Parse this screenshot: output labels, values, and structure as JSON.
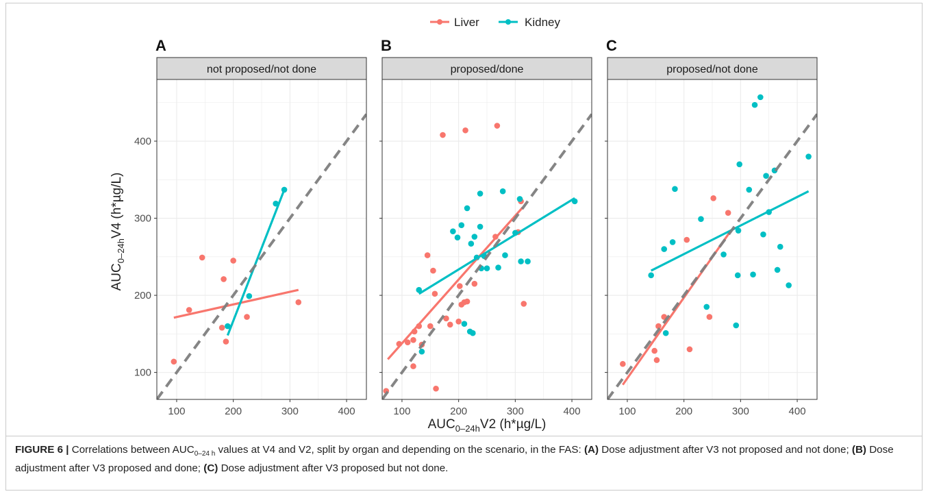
{
  "legend": {
    "items": [
      {
        "label": "Liver",
        "color": "#F8766D"
      },
      {
        "label": "Kidney",
        "color": "#00BFC4"
      }
    ]
  },
  "axes": {
    "xlabel": "AUC",
    "xlabel_sub": "0–24h",
    "xlabel_rest": "V2 (h*µg/L)",
    "ylabel": "AUC",
    "ylabel_sub": "0–24h",
    "ylabel_rest": "V4 (h*µg/L)"
  },
  "caption": {
    "figure_label": "FIGURE 6 |",
    "text1": " Correlations between AUC",
    "sub": "0–24 h",
    "text2": " values at V4 and V2, split by organ and depending on the scenario, in the FAS: ",
    "a_label": "(A)",
    "a_text": " Dose adjustment after V3 not proposed and not done; ",
    "b_label": "(B)",
    "b_text": " Dose adjustment after V3 proposed and done; ",
    "c_label": "(C)",
    "c_text": " Dose adjustment after V3 proposed but not done."
  },
  "chart_data": [
    {
      "type": "scatter",
      "panel_letter": "A",
      "strip_title": "not proposed/not done",
      "xlim": [
        65,
        435
      ],
      "ylim": [
        65,
        480
      ],
      "xticks": [
        100,
        200,
        300,
        400
      ],
      "yticks": [
        100,
        200,
        300,
        400
      ],
      "grid": true,
      "series": [
        {
          "name": "Liver",
          "color": "#F8766D",
          "points": [
            [
              95,
              114
            ],
            [
              122,
              181
            ],
            [
              145,
              249
            ],
            [
              180,
              158
            ],
            [
              183,
              221
            ],
            [
              187,
              140
            ],
            [
              200,
              245
            ],
            [
              224,
              172
            ],
            [
              315,
              191
            ]
          ],
          "fit": [
            [
              95,
              171
            ],
            [
              315,
              207
            ]
          ]
        },
        {
          "name": "Kidney",
          "color": "#00BFC4",
          "points": [
            [
              190,
              160
            ],
            [
              228,
              199
            ],
            [
              275,
              319
            ],
            [
              290,
              337
            ]
          ],
          "fit": [
            [
              190,
              148
            ],
            [
              290,
              337
            ]
          ]
        }
      ],
      "identity_line": true
    },
    {
      "type": "scatter",
      "panel_letter": "B",
      "strip_title": "proposed/done",
      "xlim": [
        65,
        435
      ],
      "ylim": [
        65,
        480
      ],
      "xticks": [
        100,
        200,
        300,
        400
      ],
      "yticks": [
        100,
        200,
        300,
        400
      ],
      "grid": true,
      "series": [
        {
          "name": "Liver",
          "color": "#F8766D",
          "points": [
            [
              72,
              76
            ],
            [
              95,
              137
            ],
            [
              110,
              139
            ],
            [
              120,
              108
            ],
            [
              120,
              142
            ],
            [
              122,
              153
            ],
            [
              130,
              160
            ],
            [
              135,
              136
            ],
            [
              145,
              252
            ],
            [
              150,
              160
            ],
            [
              155,
              232
            ],
            [
              158,
              202
            ],
            [
              160,
              79
            ],
            [
              172,
              408
            ],
            [
              178,
              170
            ],
            [
              185,
              162
            ],
            [
              200,
              166
            ],
            [
              202,
              212
            ],
            [
              205,
              188
            ],
            [
              210,
              191
            ],
            [
              212,
              414
            ],
            [
              215,
              192
            ],
            [
              228,
              215
            ],
            [
              265,
              276
            ],
            [
              268,
              420
            ],
            [
              305,
              282
            ],
            [
              310,
              322
            ],
            [
              315,
              189
            ]
          ],
          "fit": [
            [
              75,
              117
            ],
            [
              313,
              314
            ]
          ]
        },
        {
          "name": "Kidney",
          "color": "#00BFC4",
          "points": [
            [
              130,
              207
            ],
            [
              135,
              127
            ],
            [
              190,
              283
            ],
            [
              198,
              275
            ],
            [
              205,
              291
            ],
            [
              210,
              163
            ],
            [
              215,
              313
            ],
            [
              220,
              153
            ],
            [
              222,
              267
            ],
            [
              225,
              151
            ],
            [
              228,
              276
            ],
            [
              232,
              249
            ],
            [
              238,
              332
            ],
            [
              238,
              289
            ],
            [
              240,
              235
            ],
            [
              245,
              251
            ],
            [
              250,
              235
            ],
            [
              270,
              236
            ],
            [
              278,
              335
            ],
            [
              282,
              252
            ],
            [
              300,
              281
            ],
            [
              308,
              325
            ],
            [
              310,
              244
            ],
            [
              322,
              244
            ],
            [
              405,
              322
            ]
          ],
          "fit": [
            [
              130,
              202
            ],
            [
              405,
              326
            ]
          ]
        }
      ],
      "identity_line": true
    },
    {
      "type": "scatter",
      "panel_letter": "C",
      "strip_title": "proposed/not done",
      "xlim": [
        65,
        435
      ],
      "ylim": [
        65,
        480
      ],
      "xticks": [
        100,
        200,
        300,
        400
      ],
      "yticks": [
        100,
        200,
        300,
        400
      ],
      "grid": true,
      "series": [
        {
          "name": "Liver",
          "color": "#F8766D",
          "points": [
            [
              92,
              111
            ],
            [
              148,
              128
            ],
            [
              152,
              116
            ],
            [
              155,
              160
            ],
            [
              165,
              172
            ],
            [
              205,
              272
            ],
            [
              210,
              130
            ],
            [
              245,
              172
            ],
            [
              252,
              326
            ],
            [
              278,
              307
            ]
          ],
          "fit": [
            [
              92,
              84
            ],
            [
              282,
              283
            ]
          ]
        },
        {
          "name": "Kidney",
          "color": "#00BFC4",
          "points": [
            [
              142,
              226
            ],
            [
              165,
              260
            ],
            [
              168,
              151
            ],
            [
              180,
              269
            ],
            [
              184,
              338
            ],
            [
              230,
              299
            ],
            [
              240,
              185
            ],
            [
              270,
              253
            ],
            [
              292,
              161
            ],
            [
              295,
              226
            ],
            [
              296,
              284
            ],
            [
              298,
              370
            ],
            [
              315,
              337
            ],
            [
              322,
              227
            ],
            [
              325,
              447
            ],
            [
              335,
              457
            ],
            [
              340,
              279
            ],
            [
              345,
              355
            ],
            [
              350,
              308
            ],
            [
              360,
              362
            ],
            [
              365,
              233
            ],
            [
              370,
              263
            ],
            [
              385,
              213
            ],
            [
              420,
              380
            ]
          ],
          "fit": [
            [
              142,
              232
            ],
            [
              420,
              335
            ]
          ]
        }
      ],
      "identity_line": true
    }
  ]
}
